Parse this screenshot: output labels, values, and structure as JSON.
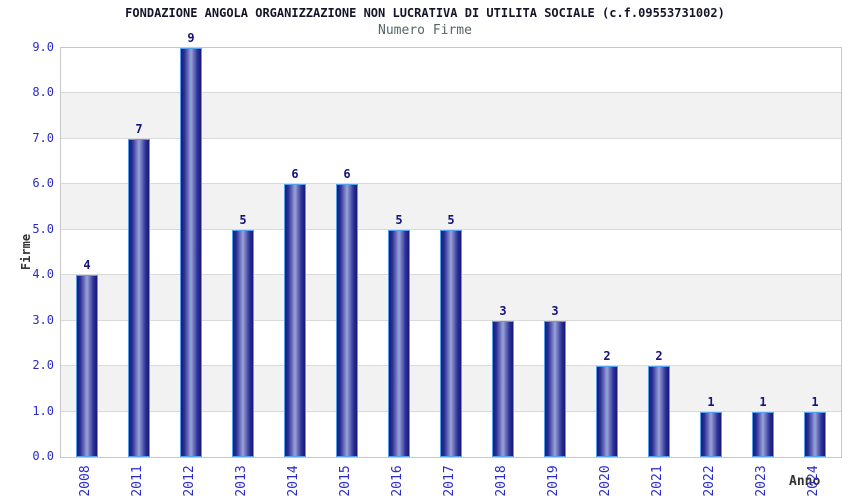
{
  "header": {
    "title": "FONDAZIONE ANGOLA ORGANIZZAZIONE NON LUCRATIVA DI UTILITA SOCIALE (c.f.09553731002)",
    "subtitle": "Numero Firme"
  },
  "chart_data": {
    "type": "bar",
    "title": "Numero Firme",
    "categories": [
      "2008",
      "2011",
      "2012",
      "2013",
      "2014",
      "2015",
      "2016",
      "2017",
      "2018",
      "2019",
      "2020",
      "2021",
      "2022",
      "2023",
      "2024"
    ],
    "values": [
      4,
      7,
      9,
      5,
      6,
      6,
      5,
      5,
      3,
      3,
      2,
      2,
      1,
      1,
      1
    ],
    "xlabel": "Anno",
    "ylabel": "Firme",
    "ylim": [
      0,
      9
    ],
    "ytick_step": 1,
    "ytick_decimals": 1,
    "grid": "horizontal-bands-alternating",
    "legend": "none",
    "value_labels": true,
    "colors": {
      "title_text": "#15152a",
      "subtitle_text": "#556666",
      "tick_label": "#2b2bcc",
      "value_label": "#14147a",
      "axis_title": "#333333",
      "bar_dark": "#181875",
      "bar_mid": "#2e339a",
      "bar_light": "#9aa3d6",
      "bar_border": "#55a0f0",
      "band_gray": "#f2f2f2",
      "gridline": "#d9d9d9",
      "plot_border": "#c8c8c8"
    }
  }
}
